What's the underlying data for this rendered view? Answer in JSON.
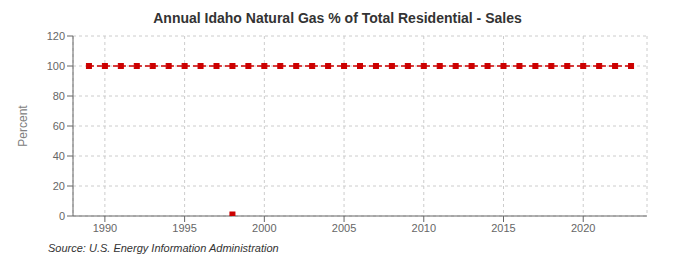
{
  "chart_data": {
    "type": "line",
    "title": "Annual Idaho Natural Gas % of Total Residential - Sales",
    "ylabel": "Percent",
    "annotation": "Source: U.S. Energy Information Administration",
    "grid": true,
    "xlim": [
      1988,
      2024
    ],
    "ylim": [
      0,
      120
    ],
    "xticks": [
      1990,
      1995,
      2000,
      2005,
      2010,
      2015,
      2020
    ],
    "yticks": [
      0,
      20,
      40,
      60,
      80,
      100,
      120
    ],
    "x": [
      1989,
      1990,
      1991,
      1992,
      1993,
      1994,
      1995,
      1996,
      1997,
      1998,
      1999,
      2000,
      2001,
      2002,
      2003,
      2004,
      2005,
      2006,
      2007,
      2008,
      2009,
      2010,
      2011,
      2012,
      2013,
      2014,
      2015,
      2016,
      2017,
      2018,
      2019,
      2020,
      2021,
      2022,
      2023
    ],
    "series": [
      {
        "color": "#cc0000",
        "marker": "square",
        "line_style": "dashed",
        "values": [
          100,
          100,
          100,
          100,
          100,
          100,
          100,
          100,
          100,
          100,
          100,
          100,
          100,
          100,
          100,
          100,
          100,
          100,
          100,
          100,
          100,
          100,
          100,
          100,
          100,
          100,
          100,
          100,
          100,
          100,
          100,
          100,
          100,
          100,
          100
        ]
      },
      {
        "color": "#cc0000",
        "marker": "square",
        "line_style": "none",
        "x": [
          1998
        ],
        "values": [
          1
        ]
      }
    ]
  }
}
